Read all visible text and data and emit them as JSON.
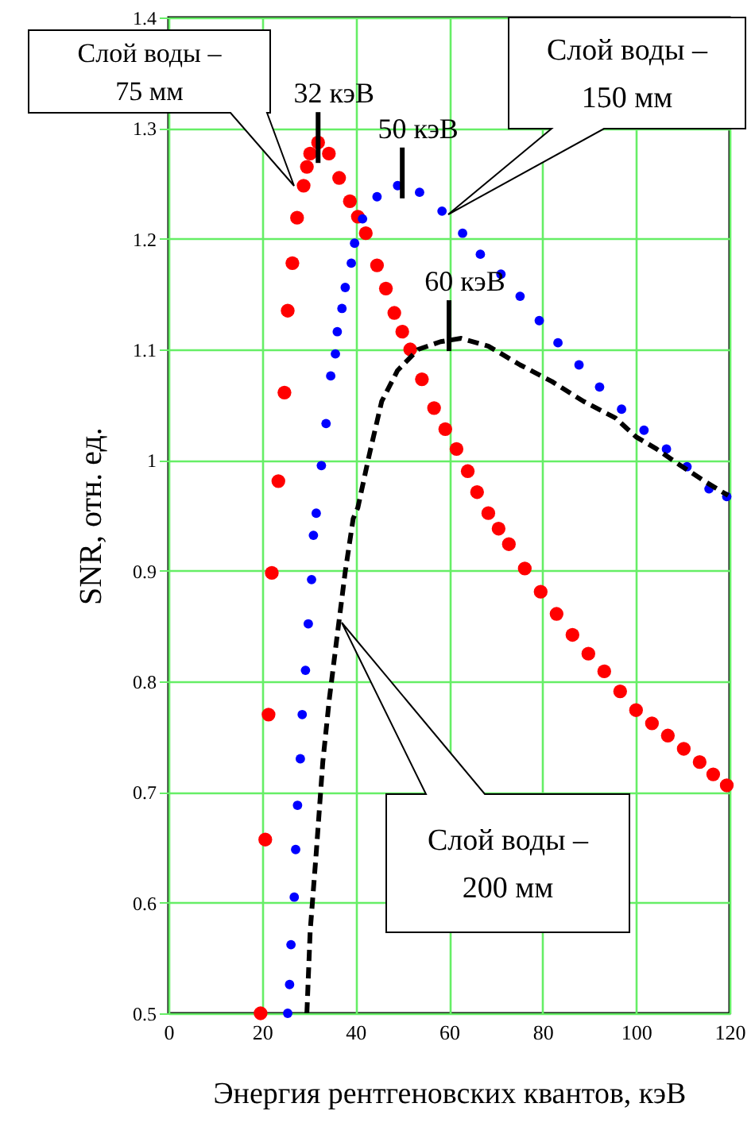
{
  "chart_data": {
    "type": "scatter",
    "xlabel": "Энергия рентгеновских квантов, кэВ",
    "ylabel": "SNR, отн. ед.",
    "xlim": [
      0,
      120
    ],
    "xticks": [
      0,
      20,
      40,
      60,
      80,
      100,
      120
    ],
    "ylim": [
      0.5,
      1.4
    ],
    "yticks": [
      0.5,
      0.6,
      0.7,
      0.8,
      0.9,
      1,
      1.1,
      1.2,
      1.3,
      1.4
    ],
    "grid": true,
    "marker": "circle",
    "series": [
      {
        "color": "#ff0000",
        "x": [
          19.7,
          20.7,
          21.4,
          22.1,
          23.5,
          24.8,
          25.5,
          26.5,
          27.5,
          28.9,
          29.6,
          30.3,
          32,
          34.3,
          36.5,
          38.8,
          40.5,
          42.2,
          44.6,
          46.5,
          48.3,
          50,
          51.7,
          54.2,
          56.8,
          59.2,
          61.6,
          64,
          66,
          68.4,
          70.6,
          72.8,
          76.2,
          79.6,
          83,
          86.4,
          89.8,
          93.2,
          96.6,
          100,
          103.4,
          106.8,
          110.2,
          113.6,
          116.5,
          119.4
        ],
        "values": [
          0.5,
          0.657,
          0.77,
          0.898,
          0.981,
          1.061,
          1.135,
          1.178,
          1.219,
          1.248,
          1.265,
          1.277,
          1.287,
          1.277,
          1.255,
          1.234,
          1.22,
          1.205,
          1.176,
          1.155,
          1.133,
          1.116,
          1.1,
          1.073,
          1.047,
          1.028,
          1.01,
          0.99,
          0.971,
          0.952,
          0.938,
          0.924,
          0.902,
          0.881,
          0.861,
          0.842,
          0.825,
          0.809,
          0.791,
          0.774,
          0.762,
          0.751,
          0.739,
          0.727,
          0.716,
          0.706
        ]
      },
      {
        "color": "#0000ff",
        "x": [
          25.5,
          25.9,
          26.2,
          26.9,
          27.2,
          27.6,
          28.2,
          28.6,
          29.3,
          29.9,
          30.6,
          31,
          31.6,
          32.7,
          33.7,
          34.7,
          35.7,
          36.1,
          37.1,
          37.8,
          39.1,
          39.8,
          41.5,
          44.6,
          49,
          53.7,
          58.5,
          62.9,
          66.7,
          71.1,
          75.2,
          79.3,
          83.3,
          87.8,
          92.2,
          96.9,
          101.7,
          106.5,
          110.9,
          115.6,
          119.4
        ],
        "values": [
          0.5,
          0.526,
          0.562,
          0.605,
          0.648,
          0.688,
          0.73,
          0.77,
          0.81,
          0.852,
          0.892,
          0.932,
          0.952,
          0.995,
          1.033,
          1.076,
          1.096,
          1.116,
          1.137,
          1.156,
          1.178,
          1.196,
          1.218,
          1.238,
          1.248,
          1.242,
          1.225,
          1.205,
          1.186,
          1.168,
          1.148,
          1.126,
          1.106,
          1.086,
          1.066,
          1.046,
          1.027,
          1.01,
          0.994,
          0.974,
          0.967
        ]
      },
      {
        "type": "line",
        "line_style": "dashed",
        "marker": "none",
        "color": "#000000",
        "x": [
          29.6,
          30.3,
          31.6,
          33,
          34.4,
          36.1,
          37.8,
          39.5,
          40.5,
          42.9,
          45.6,
          49,
          53.4,
          58.2,
          62.6,
          68.4,
          75.2,
          82,
          88.8,
          95.6,
          100,
          104.4,
          109.2,
          114.6,
          119.7
        ],
        "values": [
          0.5,
          0.574,
          0.645,
          0.727,
          0.784,
          0.842,
          0.899,
          0.947,
          0.957,
          1.004,
          1.053,
          1.081,
          1.1,
          1.107,
          1.11,
          1.103,
          1.086,
          1.071,
          1.053,
          1.038,
          1.021,
          1.01,
          0.996,
          0.981,
          0.968
        ]
      }
    ],
    "annotations": [
      {
        "text": "Слой воды – 75 мм"
      },
      {
        "text": "Слой воды – 150 мм"
      },
      {
        "text": "Слой воды – 200 мм"
      },
      {
        "text": "32 кэВ",
        "x": 32,
        "y": 1.28
      },
      {
        "text": "50 кэВ",
        "x": 50,
        "y": 1.248
      },
      {
        "text": "60 кэВ",
        "x": 60,
        "y": 1.11
      }
    ]
  }
}
